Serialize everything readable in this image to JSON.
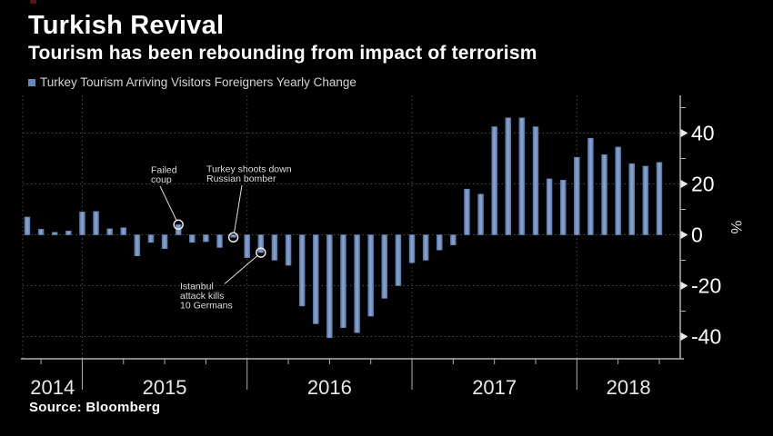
{
  "header": {
    "title": "Turkish Revival",
    "subtitle": "Tourism has been rebounding from impact of terrorism"
  },
  "legend": {
    "label": "Turkey Tourism Arriving Visitors Foreigners Yearly Change",
    "swatch_color": "#6987b4"
  },
  "footer": {
    "source": "Source: Bloomberg"
  },
  "chart_data": {
    "type": "bar",
    "title": "Turkey Tourism Arriving Visitors Foreigners Yearly Change",
    "unit": "%",
    "unit_label": "%",
    "x": [
      "2014-09",
      "2014-10",
      "2014-11",
      "2014-12",
      "2015-01",
      "2015-02",
      "2015-03",
      "2015-04",
      "2015-05",
      "2015-06",
      "2015-07",
      "2015-08",
      "2015-09",
      "2015-10",
      "2015-11",
      "2015-12",
      "2016-01",
      "2016-02",
      "2016-03",
      "2016-04",
      "2016-05",
      "2016-06",
      "2016-07",
      "2016-08",
      "2016-09",
      "2016-10",
      "2016-11",
      "2016-12",
      "2017-01",
      "2017-02",
      "2017-03",
      "2017-04",
      "2017-05",
      "2017-06",
      "2017-07",
      "2017-08",
      "2017-09",
      "2017-10",
      "2017-11",
      "2017-12",
      "2018-01",
      "2018-02",
      "2018-03",
      "2018-04",
      "2018-05",
      "2018-06",
      "2018-07"
    ],
    "values": [
      7,
      2.2,
      1,
      1.5,
      9,
      9.2,
      2.4,
      2.8,
      -8.3,
      -3,
      -5.5,
      4,
      -3,
      -2.7,
      -5,
      -1,
      -9,
      -7,
      -10,
      -12,
      -28,
      -35,
      -40.5,
      -36.5,
      -38.5,
      -32,
      -25,
      -20,
      -11,
      -10,
      -6,
      -4,
      18,
      16,
      42.5,
      46,
      46,
      42.5,
      22,
      21.5,
      30.5,
      38,
      31.5,
      34.5,
      28,
      27,
      28.5
    ],
    "ylim": [
      -48,
      55
    ],
    "y_major_ticks": [
      40,
      20,
      0,
      -20,
      -40
    ],
    "y_major_tick_labels": [
      "40",
      "20",
      "0",
      "-20",
      "-40"
    ],
    "y_minor_ticks": [
      50,
      30,
      10,
      -10,
      -30
    ],
    "x_year_labels": [
      "2014",
      "2015",
      "2016",
      "2017",
      "2018"
    ],
    "grid": "dotted",
    "legend_position": "top-left",
    "axis_side": "right",
    "annotations": [
      {
        "lines": [
          "Failed",
          "coup"
        ],
        "month": "2015-08",
        "month_index": 11
      },
      {
        "lines": [
          "Turkey shoots down",
          "Russian bomber"
        ],
        "month": "2015-12",
        "month_index": 15
      },
      {
        "lines": [
          "Istanbul",
          "attack kills",
          "10 Germans"
        ],
        "month": "2016-02",
        "month_index": 17
      }
    ],
    "colors": {
      "background": "#000000",
      "bar_edge": "#5b78a6",
      "bar_center": "#8ca7d2",
      "grid": "#4a4a4a",
      "axis": "#b0b0b0",
      "tick_label": "#ffffff",
      "year_label": "#e8e8e8",
      "annotation": "#dedede"
    }
  }
}
